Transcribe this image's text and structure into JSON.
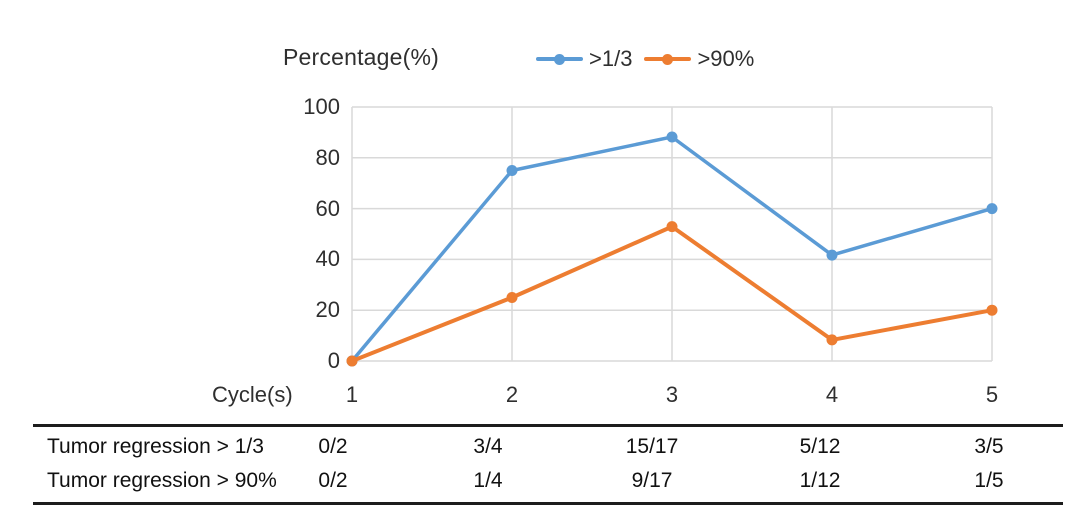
{
  "header": {
    "axis_title": "Percentage(%)"
  },
  "chart_data": {
    "type": "line",
    "title": "",
    "ylabel": "Percentage(%)",
    "xlabel": "Cycle(s)",
    "categories": [
      "1",
      "2",
      "3",
      "4",
      "5"
    ],
    "y_ticks": [
      0,
      20,
      40,
      60,
      80,
      100
    ],
    "ylim": [
      0,
      100
    ],
    "grid": true,
    "legend_position": "top",
    "gridline_color": "#d9d9d9",
    "series": [
      {
        "name": ">1/3",
        "color": "#5B9BD5",
        "values": [
          0,
          75,
          88.2,
          41.7,
          60
        ]
      },
      {
        "name": ">90%",
        "color": "#ED7D31",
        "values": [
          0,
          25,
          52.9,
          8.3,
          20
        ]
      }
    ]
  },
  "table": {
    "rows": [
      {
        "label": "Tumor regression > 1/3",
        "values": [
          "0/2",
          "3/4",
          "15/17",
          "5/12",
          "3/5"
        ]
      },
      {
        "label": "Tumor regression > 90%",
        "values": [
          "0/2",
          "1/4",
          "9/17",
          "1/12",
          "1/5"
        ]
      }
    ]
  }
}
